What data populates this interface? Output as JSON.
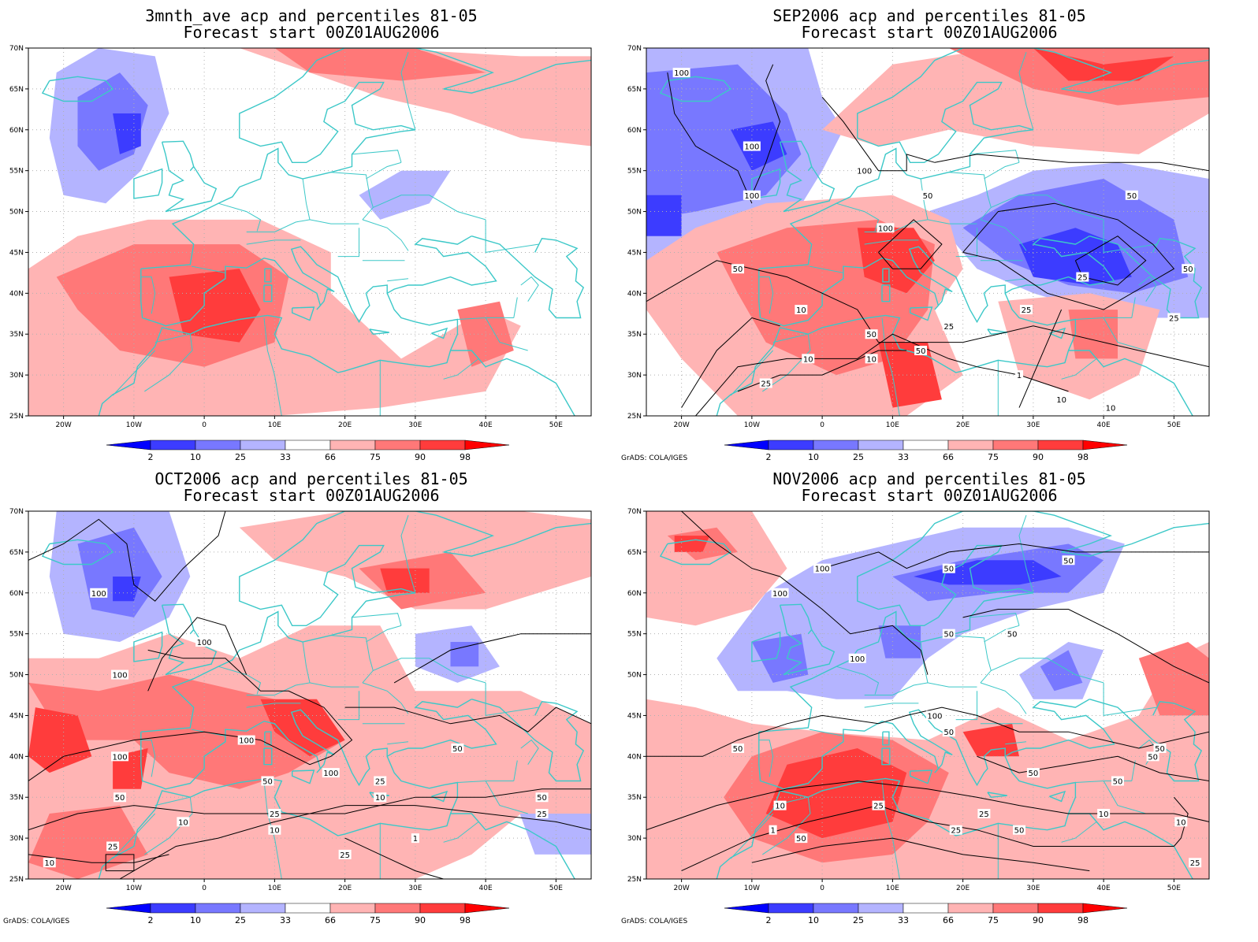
{
  "colors": {
    "land_outline": "#3cc8c8",
    "contour": "#000000",
    "gridline": "#b0b0b0"
  },
  "lat_labels": [
    "70N",
    "65N",
    "60N",
    "55N",
    "50N",
    "45N",
    "40N",
    "35N",
    "30N",
    "25N"
  ],
  "lon_labels": [
    "20W",
    "10W",
    "0",
    "10E",
    "20E",
    "30E",
    "40E",
    "50E"
  ],
  "colorbar": {
    "tick_labels": [
      "2",
      "10",
      "25",
      "33",
      "66",
      "75",
      "90",
      "98"
    ],
    "colors": [
      "#0000ff",
      "#3c3cff",
      "#7878ff",
      "#b4b4ff",
      "#ffffff",
      "#ffb4b4",
      "#ff7878",
      "#ff3c3c",
      "#ff0000"
    ]
  },
  "credit": "GrADS: COLA/IGES",
  "panels": [
    {
      "title_line1": "3mnth_ave acp and percentiles 81-05",
      "title_line2": "Forecast start 00Z01AUG2006",
      "contour_labels": []
    },
    {
      "title_line1": "SEP2006 acp and percentiles 81-05",
      "title_line2": "Forecast start 00Z01AUG2006",
      "contour_labels": [
        "100",
        "100",
        "100",
        "100",
        "50",
        "100",
        "50",
        "50",
        "25",
        "50",
        "25",
        "25",
        "10",
        "10",
        "50",
        "50",
        "10",
        "25",
        "25",
        "10",
        "1",
        "10"
      ]
    },
    {
      "title_line1": "OCT2006 acp and percentiles 81-05",
      "title_line2": "Forecast start 00Z01AUG2006",
      "contour_labels": [
        "100",
        "100",
        "100",
        "100",
        "100",
        "100",
        "50",
        "25",
        "10",
        "25",
        "10",
        "50",
        "25",
        "50",
        "25",
        "10",
        "1",
        "50",
        "25",
        "10"
      ]
    },
    {
      "title_line1": "NOV2006 acp and percentiles 81-05",
      "title_line2": "Forecast start 00Z01AUG2006",
      "contour_labels": [
        "100",
        "100",
        "50",
        "50",
        "50",
        "50",
        "100",
        "100",
        "50",
        "50",
        "50",
        "50",
        "50",
        "50",
        "25",
        "10",
        "1",
        "50",
        "25",
        "10",
        "10",
        "25",
        "50",
        "25"
      ]
    }
  ]
}
